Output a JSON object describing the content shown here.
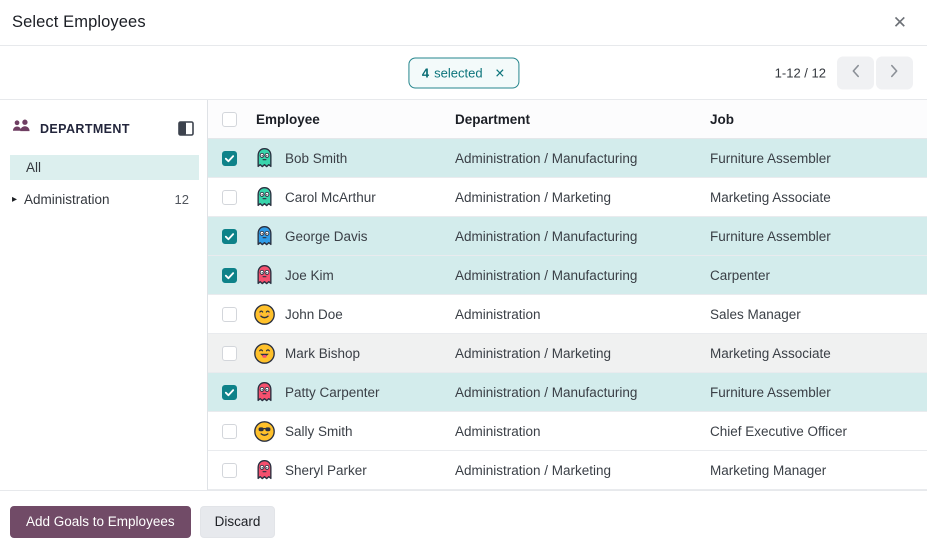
{
  "dialog": {
    "title": "Select Employees"
  },
  "icons": {
    "close_glyph": "✕",
    "badge_clear_glyph": "✕",
    "caret_right": "▸"
  },
  "control_bar": {
    "selection_badge": {
      "count": "4",
      "label": "selected"
    },
    "pager": {
      "display": "1-12 / 12"
    }
  },
  "sidebar": {
    "section_title": "DEPARTMENT",
    "items": [
      {
        "label": "All",
        "count": "",
        "selected": true
      },
      {
        "label": "Administration",
        "count": "12",
        "selected": false
      }
    ]
  },
  "table": {
    "columns": [
      "Employee",
      "Department",
      "Job"
    ],
    "rows": [
      {
        "name": "Bob Smith",
        "department": "Administration / Manufacturing",
        "job": "Furniture Assembler",
        "checked": true,
        "state": "selected",
        "avatar": "ghost-teal"
      },
      {
        "name": "Carol McArthur",
        "department": "Administration / Marketing",
        "job": "Marketing Associate",
        "checked": false,
        "state": "normal",
        "avatar": "ghost-teal"
      },
      {
        "name": "George Davis",
        "department": "Administration / Manufacturing",
        "job": "Furniture Assembler",
        "checked": true,
        "state": "selected",
        "avatar": "ghost-blue"
      },
      {
        "name": "Joe Kim",
        "department": "Administration / Manufacturing",
        "job": "Carpenter",
        "checked": true,
        "state": "selected",
        "avatar": "ghost-red"
      },
      {
        "name": "John Doe",
        "department": "Administration",
        "job": "Sales Manager",
        "checked": false,
        "state": "normal",
        "avatar": "smiley-happy"
      },
      {
        "name": "Mark Bishop",
        "department": "Administration / Marketing",
        "job": "Marketing Associate",
        "checked": false,
        "state": "muted",
        "avatar": "smiley-tongue"
      },
      {
        "name": "Patty Carpenter",
        "department": "Administration / Manufacturing",
        "job": "Furniture Assembler",
        "checked": true,
        "state": "selected",
        "avatar": "ghost-red"
      },
      {
        "name": "Sally Smith",
        "department": "Administration",
        "job": "Chief Executive Officer",
        "checked": false,
        "state": "normal",
        "avatar": "smiley-sunglasses"
      },
      {
        "name": "Sheryl Parker",
        "department": "Administration / Marketing",
        "job": "Marketing Manager",
        "checked": false,
        "state": "normal",
        "avatar": "ghost-red"
      }
    ]
  },
  "footer": {
    "primary_label": "Add Goals to Employees",
    "secondary_label": "Discard"
  },
  "colors": {
    "accent": "#0e8289",
    "sel_bg": "#d3ecec",
    "muted_bg": "#f0f1f1",
    "side_sel_bg": "#dcefee",
    "primary_bg": "#714b67",
    "ghost_teal": "#38d4ab",
    "ghost_blue": "#2f9ce8",
    "ghost_red": "#f5506e",
    "smiley_yellow": "#ffc12b",
    "outline_dark": "#2a3040",
    "badge_teal": "#0c747b"
  }
}
